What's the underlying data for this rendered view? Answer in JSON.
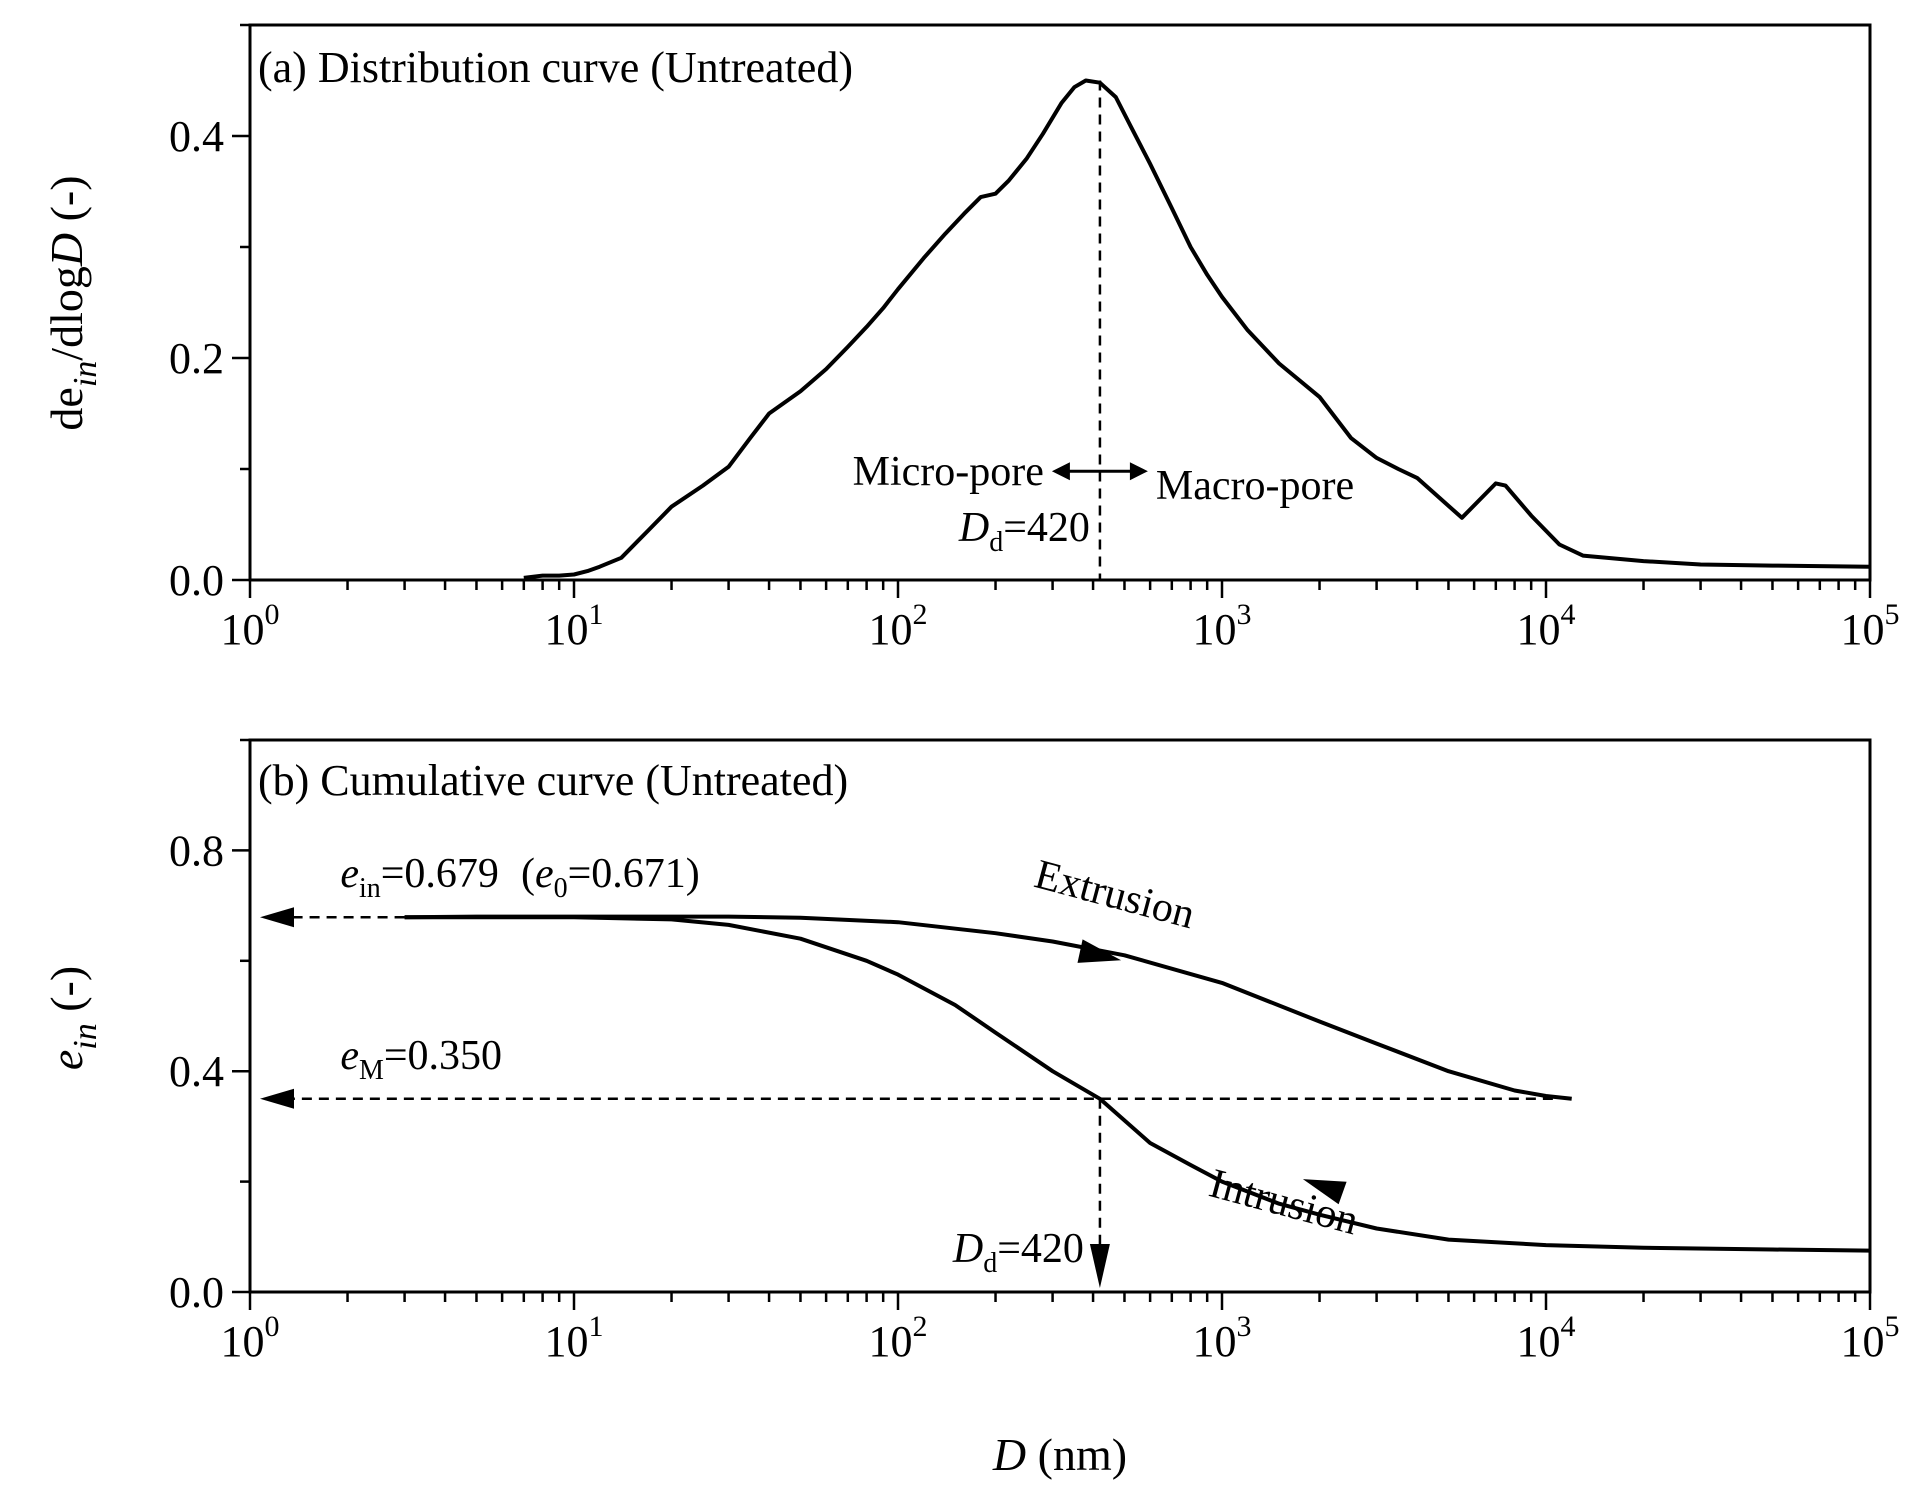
{
  "chart_data": [
    {
      "panel": "a",
      "type": "line",
      "title": "(a) Distribution curve (Untreated)",
      "xlabel": "",
      "ylabel": {
        "main": "de",
        "sub": "in",
        "rest": "/dlog",
        "italic_var": "D",
        "unit": " (-)"
      },
      "xscale": "log",
      "xlim": [
        1,
        100000
      ],
      "ylim": [
        0,
        0.5
      ],
      "xticks": [
        1,
        10,
        100,
        1000,
        10000,
        100000
      ],
      "xtick_labels": [
        {
          "base": "10",
          "exp": "0"
        },
        {
          "base": "10",
          "exp": "1"
        },
        {
          "base": "10",
          "exp": "2"
        },
        {
          "base": "10",
          "exp": "3"
        },
        {
          "base": "10",
          "exp": "4"
        },
        {
          "base": "10",
          "exp": "5"
        }
      ],
      "yticks": [
        0.0,
        0.2,
        0.4
      ],
      "ytick_labels": [
        "0.0",
        "0.2",
        "0.4"
      ],
      "series": [
        {
          "name": "Distribution",
          "x": [
            7,
            8,
            9,
            10,
            11,
            12,
            14,
            17,
            20,
            25,
            30,
            35,
            40,
            50,
            60,
            70,
            80,
            90,
            100,
            120,
            140,
            160,
            180,
            200,
            220,
            250,
            280,
            320,
            350,
            380,
            420,
            470,
            520,
            600,
            700,
            800,
            900,
            1000,
            1200,
            1500,
            2000,
            2500,
            3000,
            3500,
            4000,
            5500,
            7000,
            7500,
            9000,
            11000,
            13000,
            20000,
            30000,
            50000,
            100000
          ],
          "y": [
            0.002,
            0.004,
            0.004,
            0.005,
            0.008,
            0.012,
            0.02,
            0.045,
            0.066,
            0.085,
            0.102,
            0.128,
            0.15,
            0.17,
            0.19,
            0.21,
            0.228,
            0.245,
            0.262,
            0.29,
            0.312,
            0.33,
            0.345,
            0.348,
            0.36,
            0.38,
            0.402,
            0.43,
            0.444,
            0.45,
            0.448,
            0.435,
            0.41,
            0.375,
            0.335,
            0.3,
            0.275,
            0.255,
            0.225,
            0.195,
            0.165,
            0.128,
            0.11,
            0.1,
            0.092,
            0.056,
            0.087,
            0.085,
            0.058,
            0.032,
            0.022,
            0.017,
            0.014,
            0.013,
            0.012
          ]
        }
      ],
      "annotations": {
        "micro": "Micro-pore",
        "macro": "Macro-pore",
        "dd_var": "D",
        "dd_sub": "d",
        "dd_value": "=420",
        "dd_x": 420,
        "arrow_y": 0.098
      }
    },
    {
      "panel": "b",
      "type": "line",
      "title": "(b) Cumulative curve (Untreated)",
      "xlabel": {
        "var": "D",
        "unit": " (nm)"
      },
      "ylabel": {
        "var": "e",
        "sub": "in",
        "unit": " (-)"
      },
      "xscale": "log",
      "xlim": [
        1,
        100000
      ],
      "ylim": [
        0,
        1.0
      ],
      "xticks": [
        1,
        10,
        100,
        1000,
        10000,
        100000
      ],
      "xtick_labels": [
        {
          "base": "10",
          "exp": "0"
        },
        {
          "base": "10",
          "exp": "1"
        },
        {
          "base": "10",
          "exp": "2"
        },
        {
          "base": "10",
          "exp": "3"
        },
        {
          "base": "10",
          "exp": "4"
        },
        {
          "base": "10",
          "exp": "5"
        }
      ],
      "yticks": [
        0.0,
        0.4,
        0.8
      ],
      "ytick_labels": [
        "0.0",
        "0.4",
        "0.8"
      ],
      "series": [
        {
          "name": "Intrusion",
          "x": [
            3,
            5,
            10,
            20,
            30,
            50,
            80,
            100,
            150,
            200,
            300,
            420,
            600,
            800,
            1000,
            1500,
            2000,
            3000,
            5000,
            10000,
            20000,
            50000,
            100000
          ],
          "y": [
            0.679,
            0.679,
            0.679,
            0.675,
            0.665,
            0.64,
            0.6,
            0.575,
            0.52,
            0.47,
            0.4,
            0.35,
            0.27,
            0.23,
            0.2,
            0.16,
            0.14,
            0.115,
            0.095,
            0.085,
            0.08,
            0.077,
            0.075
          ]
        },
        {
          "name": "Extrusion",
          "x": [
            3,
            5,
            10,
            20,
            30,
            50,
            100,
            200,
            300,
            500,
            1000,
            2000,
            3000,
            5000,
            8000,
            10000,
            12000
          ],
          "y": [
            0.679,
            0.68,
            0.68,
            0.68,
            0.68,
            0.678,
            0.67,
            0.65,
            0.635,
            0.61,
            0.56,
            0.49,
            0.45,
            0.4,
            0.365,
            0.355,
            0.35
          ]
        }
      ],
      "annotations": {
        "ein_var": "e",
        "ein_sub": "in",
        "ein_value": "=0.679",
        "e0_open": "(",
        "e0_var": "e",
        "e0_sub": "0",
        "e0_value": "=0.671)",
        "ein_y": 0.679,
        "em_var": "e",
        "em_sub": "M",
        "em_value": "=0.350",
        "em_y": 0.35,
        "dd_var": "D",
        "dd_sub": "d",
        "dd_value": "=420",
        "dd_x": 420,
        "extrusion_label": "Extrusion",
        "intrusion_label": "Intrusion"
      }
    }
  ]
}
